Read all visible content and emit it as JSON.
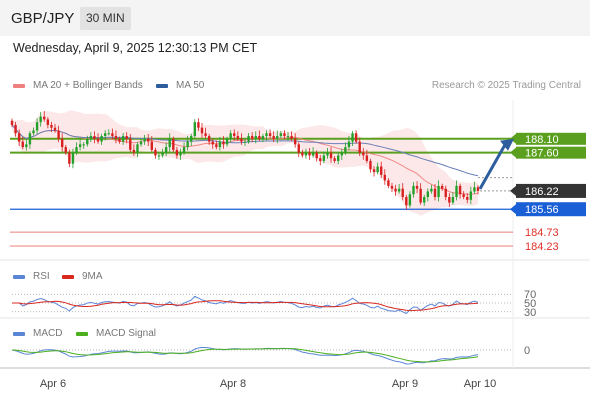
{
  "header": {
    "pair": "GBP/JPY",
    "timeframe": "30 MIN"
  },
  "datetime": "Wednesday, April 9, 2025 12:30:13 PM CET",
  "legend": {
    "ma_bb": {
      "label": "MA 20 + Bollinger Bands",
      "color": "#f08080"
    },
    "ma50": {
      "label": "MA 50",
      "color": "#2e5d9e"
    },
    "credit": "Research © 2025 Trading Central"
  },
  "rsi_legend": {
    "rsi": {
      "label": "RSI",
      "color": "#5b86d6"
    },
    "ma": {
      "label": "9MA",
      "color": "#d9281e"
    }
  },
  "macd_legend": {
    "macd": {
      "label": "MACD",
      "color": "#5b86d6"
    },
    "signal": {
      "label": "MACD Signal",
      "color": "#4caf1e"
    }
  },
  "chart_data": {
    "type": "candlestick",
    "price_ylim": [
      183.8,
      189.5
    ],
    "levels": [
      {
        "value": 188.1,
        "label": "188.10",
        "kind": "resistance",
        "color": "#5aa01e"
      },
      {
        "value": 187.6,
        "label": "187.60",
        "kind": "resistance",
        "color": "#5aa01e"
      },
      {
        "value": 186.22,
        "label": "186.22",
        "kind": "current",
        "color": "#333333"
      },
      {
        "value": 185.56,
        "label": "185.56",
        "kind": "pivot",
        "color": "#1a5fd6"
      },
      {
        "value": 184.73,
        "label": "184.73",
        "kind": "support",
        "color": "#e0302a"
      },
      {
        "value": 184.23,
        "label": "184.23",
        "kind": "support",
        "color": "#e0302a"
      }
    ],
    "x_ticks": [
      "Apr 6",
      "Apr 8",
      "Apr 9",
      "Apr 10"
    ],
    "close": [
      188.6,
      188.3,
      188.0,
      187.8,
      187.9,
      188.3,
      188.4,
      188.7,
      188.9,
      188.8,
      188.6,
      188.5,
      188.4,
      188.1,
      187.8,
      187.6,
      187.2,
      187.6,
      187.8,
      187.9,
      187.9,
      188.1,
      188.2,
      188.1,
      188.0,
      188.2,
      188.3,
      188.3,
      188.2,
      188.1,
      188.0,
      188.2,
      188.1,
      187.7,
      187.6,
      187.9,
      188.0,
      188.1,
      188.0,
      187.7,
      187.5,
      187.5,
      187.6,
      187.8,
      188.1,
      187.7,
      187.5,
      187.6,
      187.8,
      188.0,
      188.2,
      188.7,
      188.5,
      188.3,
      188.2,
      188.0,
      187.9,
      187.8,
      188.0,
      187.9,
      188.1,
      188.3,
      188.2,
      188.1,
      188.0,
      188.0,
      188.2,
      188.1,
      188.2,
      188.1,
      188.2,
      188.3,
      188.2,
      188.1,
      188.2,
      188.3,
      188.2,
      188.2,
      188.1,
      187.9,
      187.6,
      187.5,
      187.6,
      187.5,
      187.6,
      187.4,
      187.3,
      187.5,
      187.6,
      187.4,
      187.3,
      187.5,
      187.6,
      187.8,
      188.0,
      188.3,
      188.0,
      187.6,
      187.5,
      187.3,
      187.0,
      186.9,
      187.1,
      186.8,
      186.6,
      186.4,
      186.3,
      186.2,
      186.3,
      186.0,
      185.7,
      186.1,
      186.4,
      186.3,
      185.8,
      186.0,
      186.2,
      186.3,
      186.0,
      186.4,
      186.3,
      186.0,
      185.8,
      186.0,
      186.4,
      186.1,
      186.0,
      185.9,
      186.2,
      186.35,
      186.22
    ]
  },
  "rsi": {
    "ticks": [
      "70",
      "50",
      "30"
    ]
  },
  "macd": {
    "ticks": [
      "0"
    ]
  }
}
